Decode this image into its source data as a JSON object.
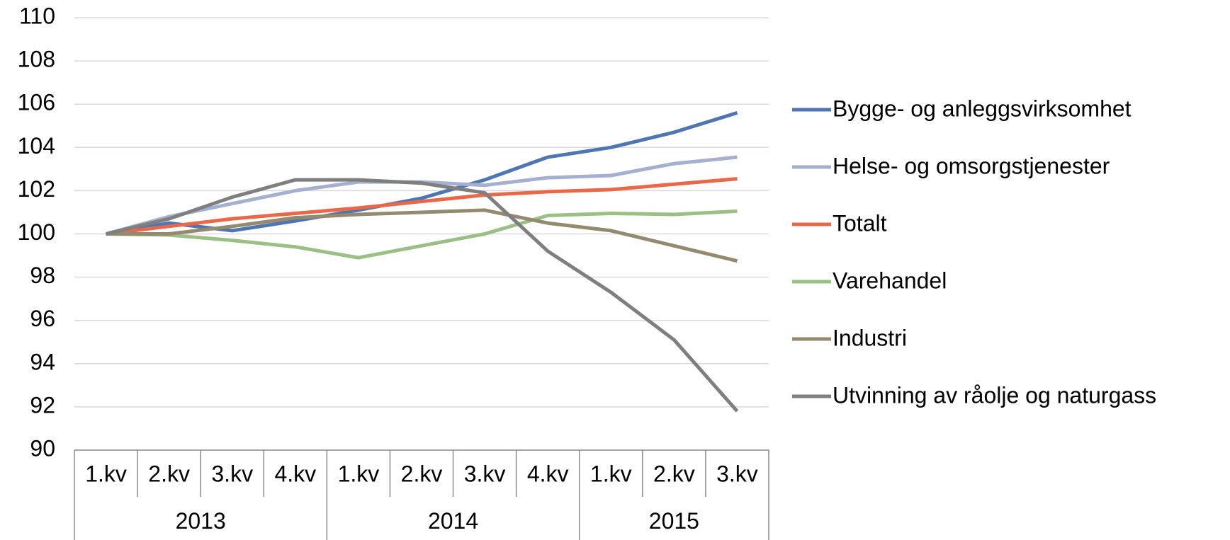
{
  "chart_data": {
    "type": "line",
    "category_groups": [
      {
        "name": "2013",
        "categories": [
          "1.kv",
          "2.kv",
          "3.kv",
          "4.kv"
        ]
      },
      {
        "name": "2014",
        "categories": [
          "1.kv",
          "2.kv",
          "3.kv",
          "4.kv"
        ]
      },
      {
        "name": "2015",
        "categories": [
          "1.kv",
          "2.kv",
          "3.kv"
        ]
      }
    ],
    "series": [
      {
        "name": "Bygge- og anleggsvirksomhet",
        "color": "#4f76b0",
        "values": [
          100,
          100.5,
          100.15,
          100.6,
          101.1,
          101.65,
          102.5,
          103.55,
          104.0,
          104.7,
          105.6
        ]
      },
      {
        "name": "Helse- og omsorgstjenester",
        "color": "#a5b0cf",
        "values": [
          100,
          100.8,
          101.4,
          102.0,
          102.4,
          102.4,
          102.25,
          102.6,
          102.7,
          103.25,
          103.55
        ]
      },
      {
        "name": "Totalt",
        "color": "#e8694a",
        "values": [
          100,
          100.35,
          100.7,
          100.95,
          101.2,
          101.5,
          101.8,
          101.95,
          102.05,
          102.3,
          102.55
        ]
      },
      {
        "name": "Varehandel",
        "color": "#9cbf86",
        "values": [
          100,
          99.95,
          99.7,
          99.4,
          98.9,
          99.45,
          100.0,
          100.85,
          100.95,
          100.9,
          101.05
        ]
      },
      {
        "name": "Industri",
        "color": "#948a6f",
        "values": [
          100,
          100.0,
          100.35,
          100.75,
          100.9,
          101.0,
          101.1,
          100.5,
          100.15,
          99.45,
          98.75
        ]
      },
      {
        "name": "Utvinning av råolje og naturgass",
        "color": "#7f7f7f",
        "values": [
          100,
          100.7,
          101.7,
          102.5,
          102.5,
          102.35,
          101.9,
          99.2,
          97.3,
          95.1,
          91.8
        ]
      }
    ],
    "ylim": [
      90,
      110
    ],
    "yticks": [
      90,
      92,
      94,
      96,
      98,
      100,
      102,
      104,
      106,
      108,
      110
    ],
    "grid": true,
    "legend": "right"
  }
}
